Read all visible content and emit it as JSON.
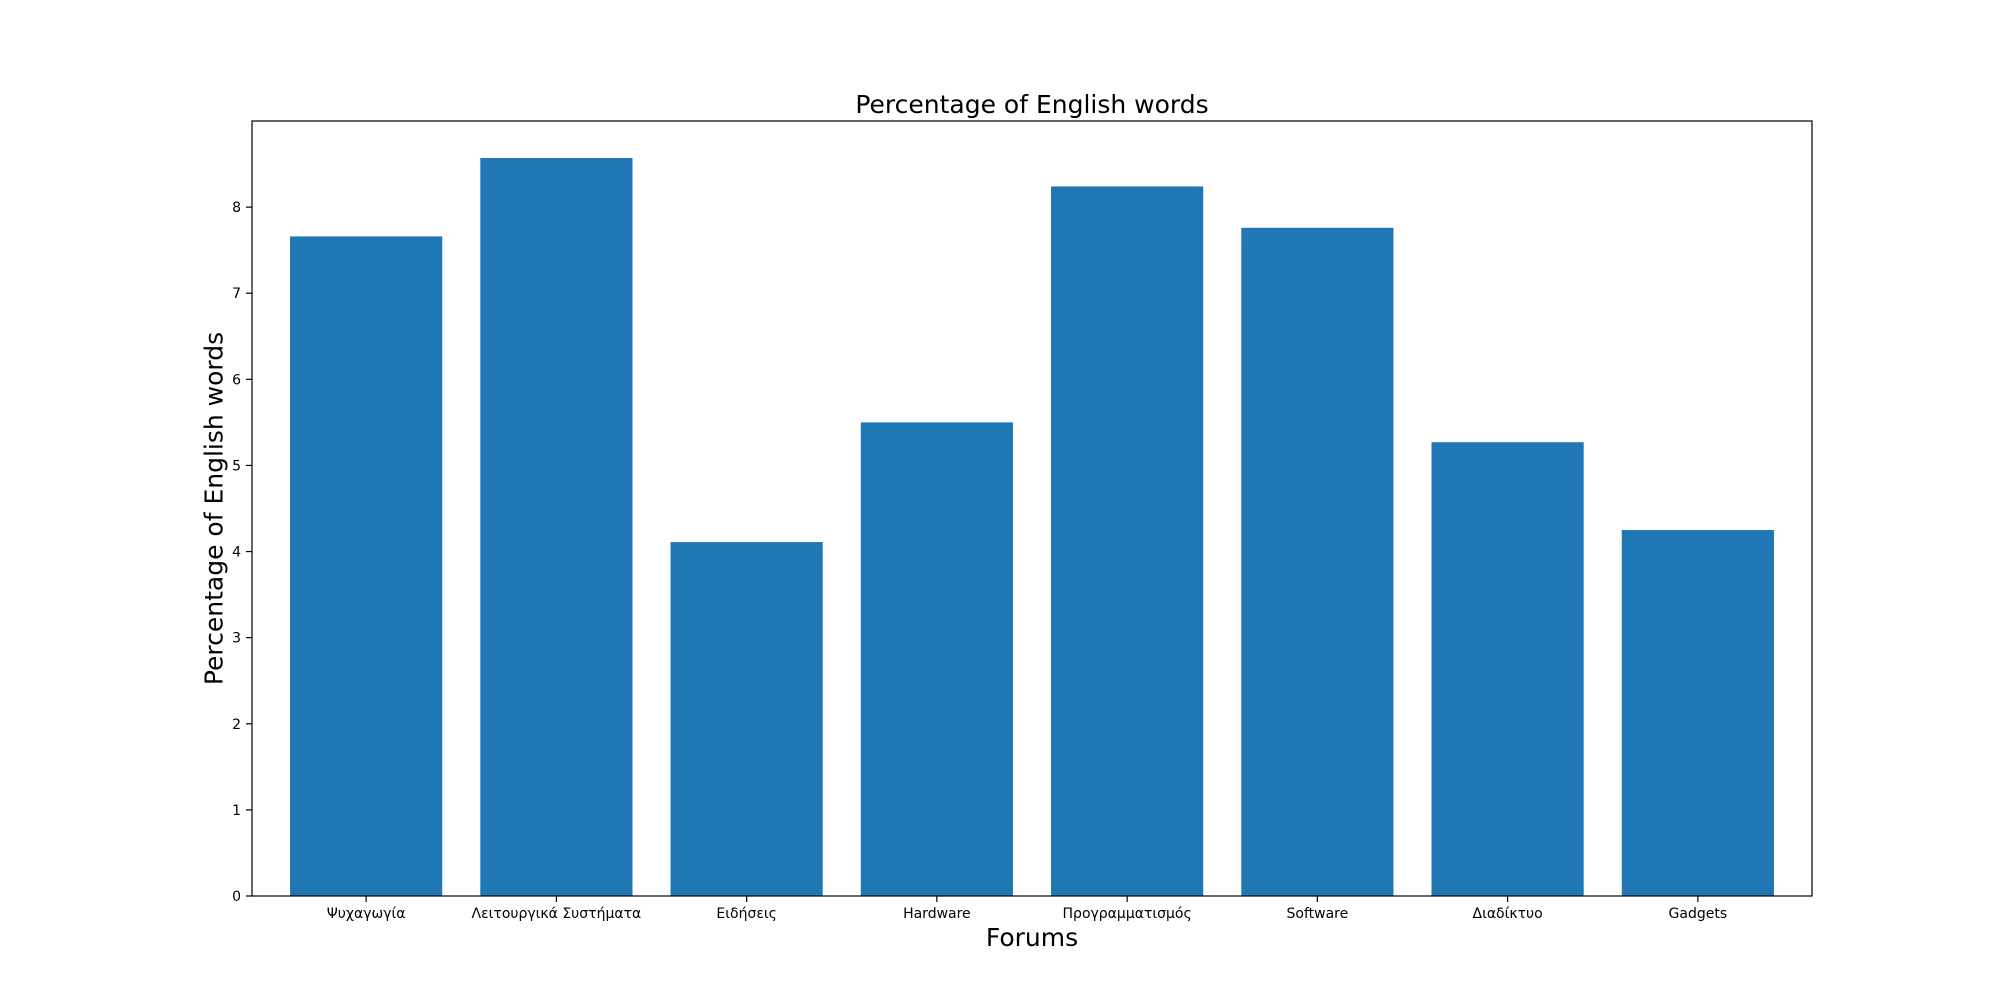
{
  "chart_data": {
    "type": "bar",
    "title": "Percentage of English words",
    "xlabel": "Forums",
    "ylabel": "Percentage of English words",
    "categories": [
      "Ψυχαγωγία",
      "Λειτουργικά Συστήματα",
      "Ειδήσεις",
      "Hardware",
      "Προγραμματισμός",
      "Software",
      "Διαδίκτυο",
      "Gadgets"
    ],
    "values": [
      7.66,
      8.57,
      4.11,
      5.5,
      8.24,
      7.76,
      5.27,
      4.25
    ],
    "ylim": [
      0,
      9.0
    ],
    "yticks": [
      0,
      1,
      2,
      3,
      4,
      5,
      6,
      7,
      8
    ],
    "bar_color": "#1f77b4",
    "grid": false,
    "legend": "none"
  }
}
